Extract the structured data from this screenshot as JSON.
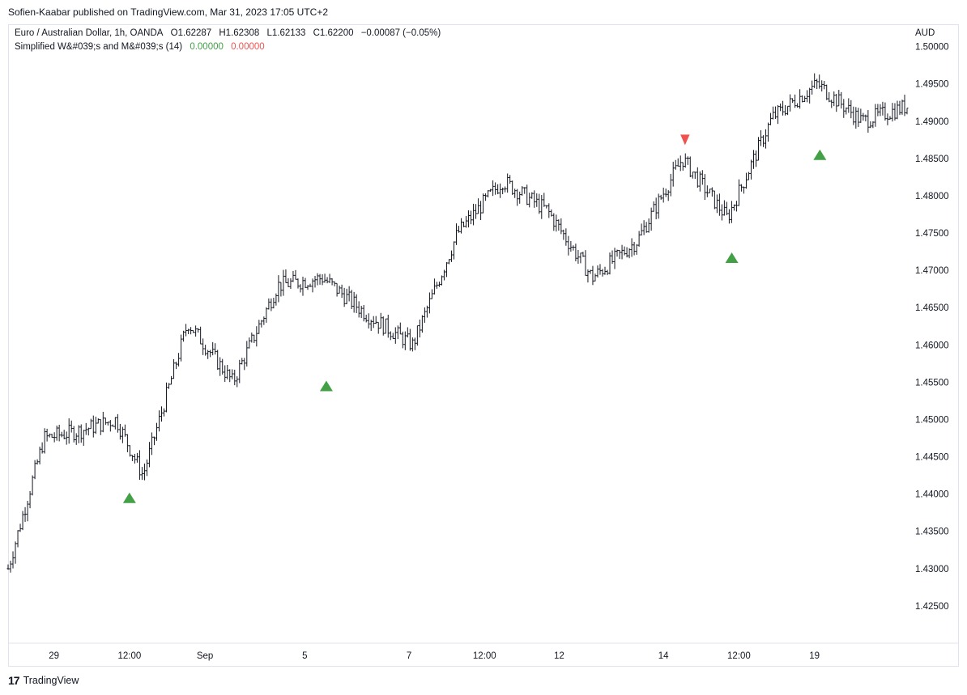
{
  "header": {
    "publisher": "Sofien-Kaabar published on TradingView.com, Mar 31, 2023 17:05 UTC+2"
  },
  "legend": {
    "symbol_line": "Euro / Australian Dollar, 1h, OANDA",
    "open": "O1.62287",
    "high": "H1.62308",
    "low": "L1.62133",
    "close": "C1.62200",
    "change": "−0.00087 (−0.05%)",
    "indicator_name": "Simplified W&#039;s and M&#039;s (14)",
    "indicator_val_1": "0.00000",
    "indicator_val_2": "0.00000"
  },
  "axis": {
    "currency": "AUD"
  },
  "footer": {
    "brand": "TradingView",
    "logo_icon": "tradingview-logo-icon"
  },
  "colors": {
    "candle": "#131722",
    "bullish_signal": "#43a047",
    "bearish_signal": "#ef5350",
    "indicator_green": "#43a047",
    "indicator_red": "#ef5350"
  },
  "chart_data": {
    "type": "line",
    "series": [
      {
        "x": [
          0,
          0.04,
          0.08,
          0.12,
          0.15,
          0.2,
          0.25,
          0.3,
          0.35,
          0.4,
          0.45,
          0.5,
          0.55,
          0.6,
          0.65,
          0.7,
          0.75,
          0.8,
          0.85,
          0.9,
          0.95,
          1.0
        ],
        "values": [
          1.43,
          1.4475,
          1.4485,
          1.45,
          1.4425,
          1.463,
          1.455,
          1.468,
          1.469,
          1.464,
          1.46,
          1.475,
          1.482,
          1.478,
          1.469,
          1.474,
          1.485,
          1.477,
          1.4905,
          1.495,
          1.49,
          1.492
        ]
      }
    ],
    "ylim": [
      1.42,
      1.503
    ],
    "y_ticks": [
      "1.42500",
      "1.43000",
      "1.43500",
      "1.44000",
      "1.44500",
      "1.45000",
      "1.45500",
      "1.46000",
      "1.46500",
      "1.47000",
      "1.47500",
      "1.48000",
      "1.48500",
      "1.49000",
      "1.49500",
      "1.50000"
    ],
    "x_ticks": [
      {
        "label": "29",
        "at": 0.051
      },
      {
        "label": "12:00",
        "at": 0.135
      },
      {
        "label": "Sep",
        "at": 0.219
      },
      {
        "label": "5",
        "at": 0.33
      },
      {
        "label": "7",
        "at": 0.446
      },
      {
        "label": "12:00",
        "at": 0.53
      },
      {
        "label": "12",
        "at": 0.613
      },
      {
        "label": "14",
        "at": 0.729
      },
      {
        "label": "12:00",
        "at": 0.813
      },
      {
        "label": "19",
        "at": 0.897
      }
    ],
    "signals": [
      {
        "type": "bullish",
        "at": 0.135,
        "value": 1.4395
      },
      {
        "type": "bullish",
        "at": 0.354,
        "value": 1.4545
      },
      {
        "type": "bearish",
        "at": 0.753,
        "value": 1.4875
      },
      {
        "type": "bullish",
        "at": 0.805,
        "value": 1.4717
      },
      {
        "type": "bullish",
        "at": 0.903,
        "value": 1.4855
      }
    ]
  }
}
